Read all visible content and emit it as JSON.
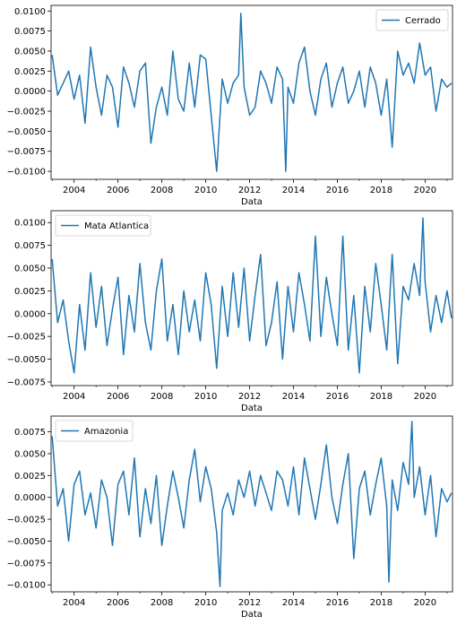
{
  "chart_data": [
    {
      "type": "line",
      "xlabel": "Data",
      "ylabel": "",
      "xlim": [
        2002.95,
        2021.25
      ],
      "ylim": [
        -0.011,
        0.0107
      ],
      "x_ticks": [
        2004,
        2006,
        2008,
        2010,
        2012,
        2014,
        2016,
        2018,
        2020
      ],
      "y_ticks": [
        -0.01,
        -0.0075,
        -0.005,
        -0.0025,
        0.0,
        0.0025,
        0.005,
        0.0075,
        0.01
      ],
      "y_tick_labels": [
        "−0.0100",
        "−0.0075",
        "−0.0050",
        "−0.0025",
        "0.0000",
        "0.0025",
        "0.0050",
        "0.0075",
        "0.0100"
      ],
      "legend_position": "upper-right",
      "grid": false,
      "series": [
        {
          "name": "Cerrado",
          "color": "#1f77b4",
          "x": [
            2003.0,
            2003.25,
            2003.5,
            2003.75,
            2004.0,
            2004.25,
            2004.5,
            2004.75,
            2005.0,
            2005.25,
            2005.5,
            2005.75,
            2006.0,
            2006.25,
            2006.5,
            2006.75,
            2007.0,
            2007.25,
            2007.5,
            2007.75,
            2008.0,
            2008.25,
            2008.5,
            2008.75,
            2009.0,
            2009.25,
            2009.5,
            2009.75,
            2010.0,
            2010.25,
            2010.5,
            2010.75,
            2011.0,
            2011.25,
            2011.5,
            2011.6,
            2011.75,
            2012.0,
            2012.25,
            2012.5,
            2012.75,
            2013.0,
            2013.25,
            2013.5,
            2013.65,
            2013.75,
            2014.0,
            2014.25,
            2014.5,
            2014.75,
            2015.0,
            2015.25,
            2015.5,
            2015.75,
            2016.0,
            2016.25,
            2016.5,
            2016.75,
            2017.0,
            2017.25,
            2017.5,
            2017.75,
            2018.0,
            2018.25,
            2018.5,
            2018.75,
            2019.0,
            2019.25,
            2019.5,
            2019.75,
            2020.0,
            2020.25,
            2020.5,
            2020.75,
            2021.0,
            2021.2
          ],
          "values": [
            0.0045,
            -0.0005,
            0.001,
            0.0025,
            -0.001,
            0.002,
            -0.004,
            0.0055,
            0.0005,
            -0.003,
            0.002,
            0.0005,
            -0.0045,
            0.003,
            0.001,
            -0.002,
            0.0025,
            0.0035,
            -0.0065,
            -0.002,
            0.0005,
            -0.003,
            0.005,
            -0.001,
            -0.0025,
            0.0035,
            -0.002,
            0.0045,
            0.004,
            -0.003,
            -0.01,
            0.0015,
            -0.0015,
            0.001,
            0.002,
            0.0097,
            0.0005,
            -0.003,
            -0.002,
            0.0025,
            0.001,
            -0.0015,
            0.003,
            0.0015,
            -0.01,
            0.0005,
            -0.0015,
            0.0035,
            0.0055,
            0.0,
            -0.003,
            0.0015,
            0.0035,
            -0.002,
            0.001,
            0.003,
            -0.0015,
            0.0,
            0.0025,
            -0.002,
            0.003,
            0.001,
            -0.003,
            0.0015,
            -0.007,
            0.005,
            0.002,
            0.0035,
            0.001,
            0.006,
            0.002,
            0.003,
            -0.0025,
            0.0015,
            0.0005,
            0.001
          ]
        }
      ]
    },
    {
      "type": "line",
      "xlabel": "Data",
      "ylabel": "",
      "xlim": [
        2002.95,
        2021.25
      ],
      "ylim": [
        -0.0079,
        0.0113
      ],
      "x_ticks": [
        2004,
        2006,
        2008,
        2010,
        2012,
        2014,
        2016,
        2018,
        2020
      ],
      "y_ticks": [
        -0.0075,
        -0.005,
        -0.0025,
        0.0,
        0.0025,
        0.005,
        0.0075,
        0.01
      ],
      "y_tick_labels": [
        "−0.0075",
        "−0.0050",
        "−0.0025",
        "0.0000",
        "0.0025",
        "0.0050",
        "0.0075",
        "0.0100"
      ],
      "legend_position": "upper-left",
      "grid": false,
      "series": [
        {
          "name": "Mata Atlantica",
          "color": "#1f77b4",
          "x": [
            2003.0,
            2003.25,
            2003.5,
            2003.75,
            2004.0,
            2004.25,
            2004.5,
            2004.75,
            2005.0,
            2005.25,
            2005.5,
            2005.75,
            2006.0,
            2006.25,
            2006.5,
            2006.75,
            2007.0,
            2007.25,
            2007.5,
            2007.75,
            2008.0,
            2008.25,
            2008.5,
            2008.75,
            2009.0,
            2009.25,
            2009.5,
            2009.75,
            2010.0,
            2010.25,
            2010.5,
            2010.75,
            2011.0,
            2011.25,
            2011.5,
            2011.75,
            2012.0,
            2012.25,
            2012.5,
            2012.75,
            2013.0,
            2013.25,
            2013.5,
            2013.75,
            2014.0,
            2014.25,
            2014.5,
            2014.75,
            2015.0,
            2015.25,
            2015.5,
            2015.75,
            2016.0,
            2016.25,
            2016.5,
            2016.75,
            2017.0,
            2017.25,
            2017.5,
            2017.75,
            2018.0,
            2018.25,
            2018.5,
            2018.75,
            2019.0,
            2019.25,
            2019.5,
            2019.75,
            2019.9,
            2020.0,
            2020.25,
            2020.5,
            2020.75,
            2021.0,
            2021.2
          ],
          "values": [
            0.006,
            -0.001,
            0.0015,
            -0.003,
            -0.0065,
            0.001,
            -0.004,
            0.0045,
            -0.0015,
            0.003,
            -0.0035,
            0.0005,
            0.004,
            -0.0045,
            0.002,
            -0.002,
            0.0055,
            -0.001,
            -0.004,
            0.0025,
            0.006,
            -0.003,
            0.001,
            -0.0045,
            0.0025,
            -0.002,
            0.0015,
            -0.003,
            0.0045,
            0.001,
            -0.006,
            0.003,
            -0.0025,
            0.0045,
            -0.0015,
            0.005,
            -0.003,
            0.002,
            0.0065,
            -0.0035,
            -0.001,
            0.0035,
            -0.005,
            0.003,
            -0.002,
            0.0045,
            0.001,
            -0.003,
            0.0085,
            -0.0025,
            0.004,
            0.0,
            -0.0035,
            0.0085,
            -0.004,
            0.002,
            -0.0065,
            0.003,
            -0.002,
            0.0055,
            0.001,
            -0.004,
            0.0065,
            -0.0055,
            0.003,
            0.0015,
            0.0055,
            0.002,
            0.0105,
            0.0035,
            -0.002,
            0.002,
            -0.001,
            0.0025,
            -0.0005
          ]
        }
      ]
    },
    {
      "type": "line",
      "xlabel": "Data",
      "ylabel": "",
      "xlim": [
        2002.95,
        2021.25
      ],
      "ylim": [
        -0.0108,
        0.0093
      ],
      "x_ticks": [
        2004,
        2006,
        2008,
        2010,
        2012,
        2014,
        2016,
        2018,
        2020
      ],
      "y_ticks": [
        -0.01,
        -0.0075,
        -0.005,
        -0.0025,
        0.0,
        0.0025,
        0.005,
        0.0075
      ],
      "y_tick_labels": [
        "−0.0100",
        "−0.0075",
        "−0.0050",
        "−0.0025",
        "0.0000",
        "0.0025",
        "0.0050",
        "0.0075"
      ],
      "legend_position": "upper-left",
      "grid": false,
      "series": [
        {
          "name": "Amazonia",
          "color": "#1f77b4",
          "x": [
            2003.0,
            2003.25,
            2003.5,
            2003.75,
            2004.0,
            2004.25,
            2004.5,
            2004.75,
            2005.0,
            2005.25,
            2005.5,
            2005.75,
            2006.0,
            2006.25,
            2006.5,
            2006.75,
            2007.0,
            2007.25,
            2007.5,
            2007.75,
            2008.0,
            2008.25,
            2008.5,
            2008.75,
            2009.0,
            2009.25,
            2009.5,
            2009.75,
            2010.0,
            2010.25,
            2010.5,
            2010.65,
            2010.75,
            2011.0,
            2011.25,
            2011.5,
            2011.75,
            2012.0,
            2012.25,
            2012.5,
            2012.75,
            2013.0,
            2013.25,
            2013.5,
            2013.75,
            2014.0,
            2014.25,
            2014.5,
            2014.75,
            2015.0,
            2015.25,
            2015.5,
            2015.75,
            2016.0,
            2016.25,
            2016.5,
            2016.75,
            2017.0,
            2017.25,
            2017.5,
            2017.75,
            2018.0,
            2018.25,
            2018.35,
            2018.5,
            2018.75,
            2019.0,
            2019.25,
            2019.4,
            2019.5,
            2019.75,
            2020.0,
            2020.25,
            2020.5,
            2020.75,
            2021.0,
            2021.2
          ],
          "values": [
            0.007,
            -0.001,
            0.001,
            -0.005,
            0.0015,
            0.003,
            -0.002,
            0.0005,
            -0.0035,
            0.002,
            0.0,
            -0.0055,
            0.0015,
            0.003,
            -0.002,
            0.0045,
            -0.0045,
            0.001,
            -0.003,
            0.0025,
            -0.0055,
            -0.001,
            0.003,
            0.0,
            -0.0035,
            0.002,
            0.0055,
            -0.0005,
            0.0035,
            0.001,
            -0.004,
            -0.0102,
            -0.0015,
            0.0005,
            -0.002,
            0.002,
            0.0,
            0.003,
            -0.001,
            0.0025,
            0.0005,
            -0.0015,
            0.003,
            0.002,
            -0.001,
            0.0035,
            -0.002,
            0.0045,
            0.001,
            -0.0025,
            0.0015,
            0.006,
            0.0,
            -0.003,
            0.0015,
            0.005,
            -0.007,
            0.001,
            0.003,
            -0.002,
            0.0015,
            0.0045,
            -0.001,
            -0.0097,
            0.002,
            -0.0015,
            0.004,
            0.0015,
            0.0087,
            0.0,
            0.0035,
            -0.002,
            0.0025,
            -0.0045,
            0.001,
            -0.0005,
            0.0005
          ]
        }
      ]
    }
  ]
}
